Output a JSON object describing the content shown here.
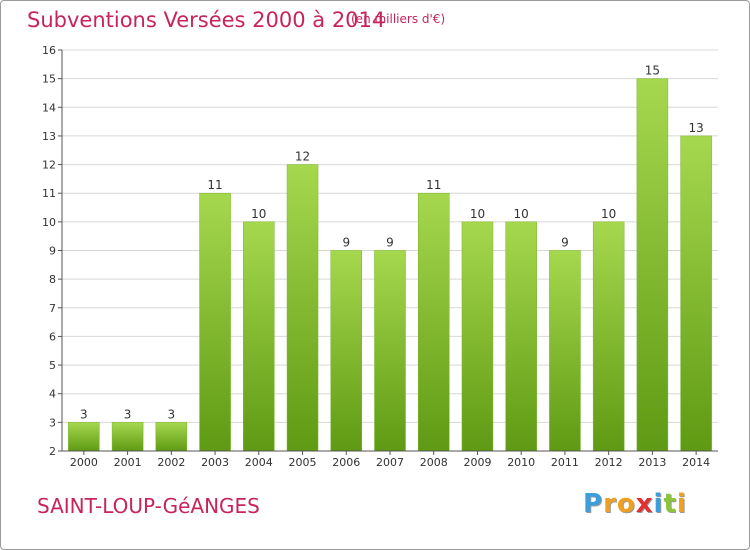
{
  "header": {
    "title": "Subventions Versées 2000 à 2014",
    "unit": "(en milliers d'€)"
  },
  "footer": {
    "commune": "SAINT-LOUP-GéANGES",
    "logo": {
      "letters": [
        "P",
        "r",
        "o",
        "x",
        "i",
        "t",
        "i"
      ],
      "colors": [
        "#3a9fdc",
        "#f0a020",
        "#f0a020",
        "#e03030",
        "#3a9fdc",
        "#8cc43a",
        "#f0a020"
      ]
    }
  },
  "colors": {
    "title": "#c8245a",
    "bar_top": "#a6d84e",
    "bar_bottom": "#5f9a14",
    "grid": "#d8d8d8",
    "axis": "#555555",
    "text": "#333333"
  },
  "chart_data": {
    "type": "bar",
    "title": "Subventions Versées 2000 à 2014",
    "subtitle": "(en milliers d'€)",
    "categories": [
      "2000",
      "2001",
      "2002",
      "2003",
      "2004",
      "2005",
      "2006",
      "2007",
      "2008",
      "2009",
      "2010",
      "2011",
      "2012",
      "2013",
      "2014"
    ],
    "values": [
      3,
      3,
      3,
      11,
      10,
      12,
      9,
      9,
      11,
      10,
      10,
      9,
      10,
      15,
      13
    ],
    "ylim": [
      2,
      16
    ],
    "yticks": [
      2,
      3,
      4,
      5,
      6,
      7,
      8,
      9,
      10,
      11,
      12,
      13,
      14,
      15,
      16
    ],
    "grid": true,
    "data_labels": true
  }
}
